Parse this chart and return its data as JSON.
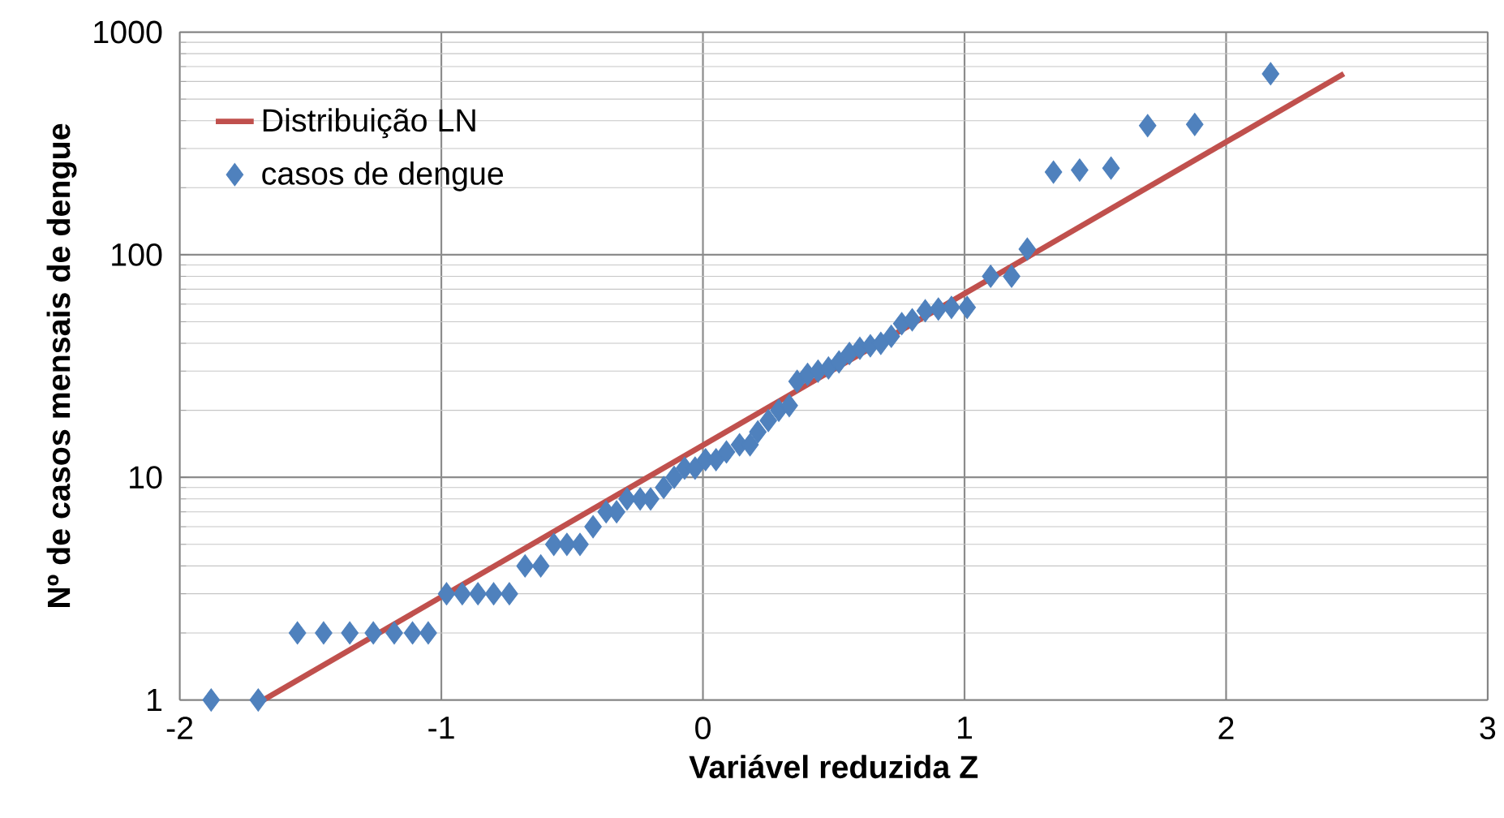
{
  "chart_data": {
    "type": "scatter",
    "xlabel": "Variável reduzida Z",
    "ylabel": "Nº de casos mensais de dengue",
    "xlim": [
      -2,
      3
    ],
    "ylim": [
      1,
      1000
    ],
    "xticks": [
      -2,
      -1,
      0,
      1,
      2,
      3
    ],
    "yticks": [
      1,
      10,
      100,
      1000
    ],
    "log": "y",
    "grid": true,
    "legend": "top left",
    "series": [
      {
        "name": "Distribuição LN",
        "type": "line",
        "color": "#c0504d",
        "marker": "none",
        "line_style": "solid",
        "x": [
          -1.68,
          2.45
        ],
        "values": [
          1,
          650
        ]
      },
      {
        "name": "casos de dengue",
        "color": "#4f81bd",
        "marker": "diamond",
        "x": [
          -1.88,
          -1.7,
          -1.55,
          -1.45,
          -1.35,
          -1.26,
          -1.18,
          -1.11,
          -1.05,
          -0.98,
          -0.92,
          -0.86,
          -0.8,
          -0.74,
          -0.68,
          -0.62,
          -0.57,
          -0.52,
          -0.47,
          -0.42,
          -0.37,
          -0.33,
          -0.29,
          -0.24,
          -0.2,
          -0.15,
          -0.11,
          -0.07,
          -0.03,
          0.01,
          0.05,
          0.09,
          0.14,
          0.18,
          0.21,
          0.25,
          0.29,
          0.33,
          0.36,
          0.4,
          0.44,
          0.48,
          0.52,
          0.56,
          0.6,
          0.64,
          0.68,
          0.72,
          0.76,
          0.8,
          0.85,
          0.9,
          0.95,
          1.01,
          1.1,
          1.18,
          1.24,
          1.34,
          1.44,
          1.56,
          1.7,
          1.88,
          2.17
        ],
        "values": [
          1,
          1,
          2,
          2,
          2,
          2,
          2,
          2,
          2,
          3,
          3,
          3,
          3,
          3,
          4,
          4,
          5,
          5,
          5,
          6,
          7,
          7,
          8,
          8,
          8,
          9,
          10,
          11,
          11,
          12,
          12,
          13,
          14,
          14,
          16,
          18,
          20,
          21,
          27,
          29,
          30,
          31,
          33,
          36,
          38,
          39,
          40,
          43,
          49,
          51,
          56,
          57,
          58,
          58,
          80,
          80,
          106,
          235,
          240,
          245,
          380,
          385,
          650
        ]
      }
    ]
  }
}
